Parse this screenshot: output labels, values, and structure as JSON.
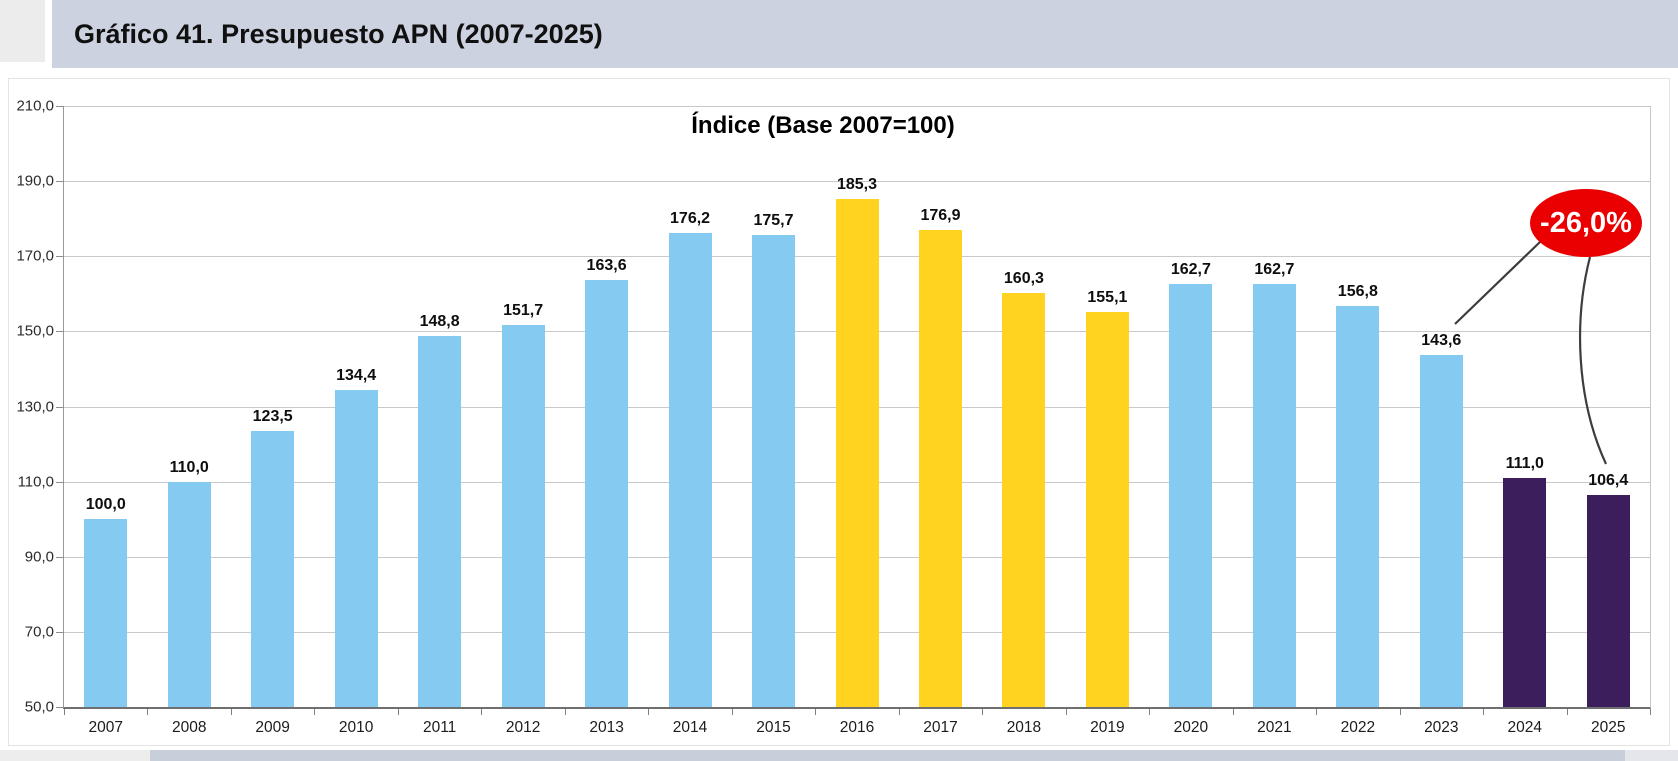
{
  "header": {
    "title": "Gráfico 41. Presupuesto APN (2007-2025)"
  },
  "chart_data": {
    "type": "bar",
    "title": "Índice (Base 2007=100)",
    "categories": [
      "2007",
      "2008",
      "2009",
      "2010",
      "2011",
      "2012",
      "2013",
      "2014",
      "2015",
      "2016",
      "2017",
      "2018",
      "2019",
      "2020",
      "2021",
      "2022",
      "2023",
      "2024",
      "2025"
    ],
    "values": [
      100.0,
      110.0,
      123.5,
      134.4,
      148.8,
      151.7,
      163.6,
      176.2,
      175.7,
      185.3,
      176.9,
      160.3,
      155.1,
      162.7,
      162.7,
      156.8,
      143.6,
      111.0,
      106.4
    ],
    "value_labels": [
      "100,0",
      "110,0",
      "123,5",
      "134,4",
      "148,8",
      "151,7",
      "163,6",
      "176,2",
      "175,7",
      "185,3",
      "176,9",
      "160,3",
      "155,1",
      "162,7",
      "162,7",
      "156,8",
      "143,6",
      "111,0",
      "106,4"
    ],
    "bar_color_keys": [
      "blue",
      "blue",
      "blue",
      "blue",
      "blue",
      "blue",
      "blue",
      "blue",
      "blue",
      "yellow",
      "yellow",
      "yellow",
      "yellow",
      "blue",
      "blue",
      "blue",
      "blue",
      "purple",
      "purple"
    ],
    "palette": {
      "blue": "#85CAF1",
      "yellow": "#FFD320",
      "purple": "#3C1E5C"
    },
    "xlabel": "",
    "ylabel": "",
    "ylim": [
      50,
      210
    ],
    "ytick_values": [
      210,
      190,
      170,
      150,
      130,
      110,
      90,
      70,
      50
    ],
    "ytick_labels": [
      "210,0",
      "190,0",
      "170,0",
      "150,0",
      "130,0",
      "110,0",
      "90,0",
      "70,0",
      "50,0"
    ],
    "grid": true,
    "legend": "none",
    "annotation": {
      "label": "-26,0%",
      "fill_color": "#EA0000",
      "text_color": "#FFFFFF",
      "points_to_categories": [
        "2023",
        "2025"
      ]
    }
  }
}
